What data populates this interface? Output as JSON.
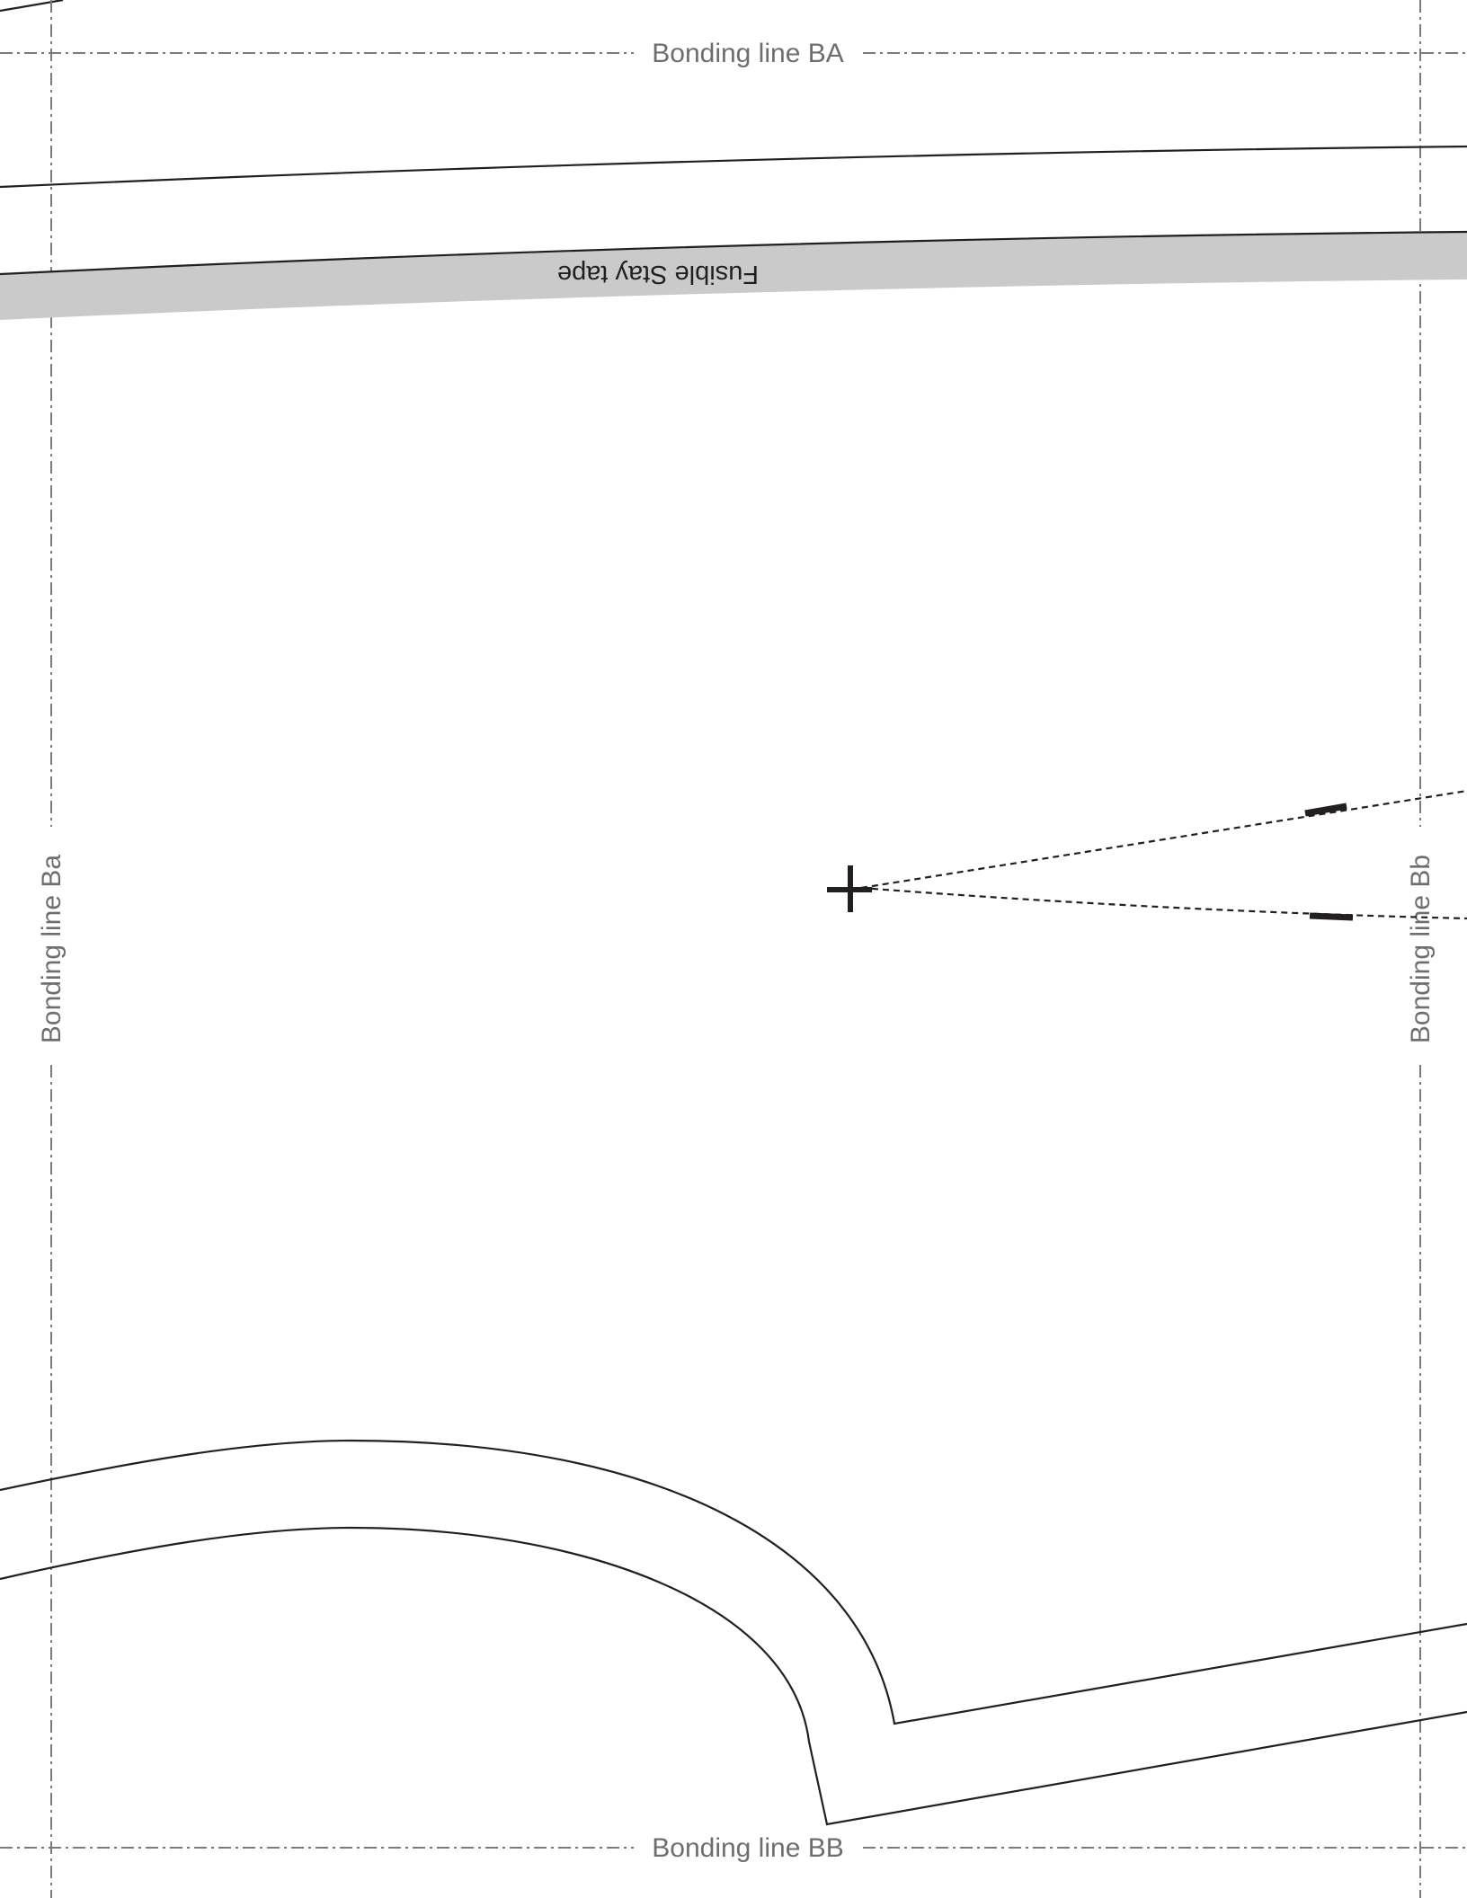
{
  "bonding_lines": {
    "top_label": "Bonding line BA",
    "bottom_label": "Bonding line BB",
    "left_label": "Bonding line Ba",
    "right_label": "Bonding line Bb"
  },
  "fusible_tape": {
    "label": "Fusible Stay tape",
    "fill_color": "#c9cac9"
  },
  "colors": {
    "outline": "#231f20",
    "bonding_line": "#7a7b7e",
    "label_text": "#6d6e71"
  }
}
